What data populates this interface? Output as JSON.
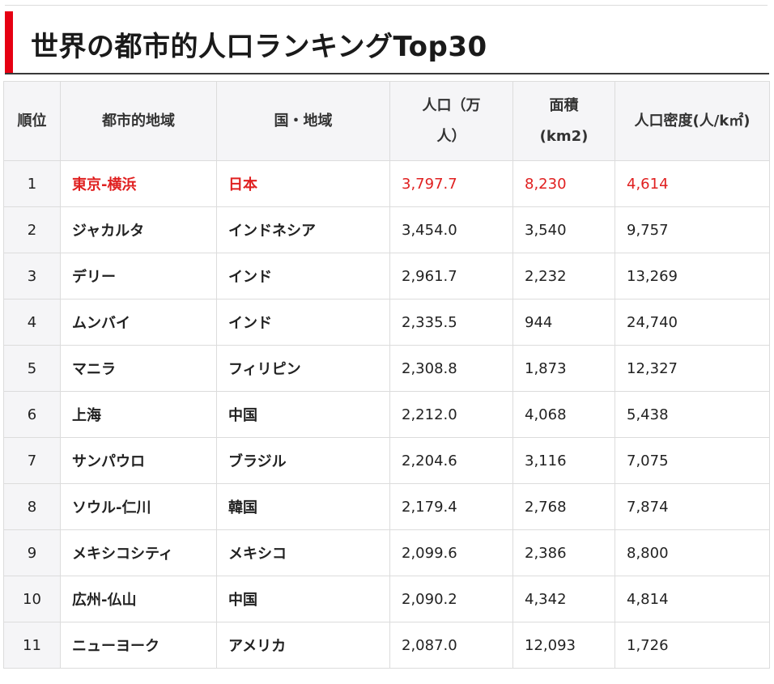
{
  "title": "世界の都市的人口ランキングTop30",
  "accent_color": "#e60012",
  "highlight_color": "#e02020",
  "table": {
    "headers": {
      "rank": "順位",
      "city": "都市的地域",
      "country": "国・地域",
      "population": "人口（万人）",
      "area": "面積(km2)",
      "density": "人口密度(人/k㎡)"
    },
    "rows": [
      {
        "rank": "1",
        "city": "東京-横浜",
        "country": "日本",
        "population": "3,797.7",
        "area": "8,230",
        "density": "4,614",
        "highlight": true
      },
      {
        "rank": "2",
        "city": "ジャカルタ",
        "country": "インドネシア",
        "population": "3,454.0",
        "area": "3,540",
        "density": "9,757"
      },
      {
        "rank": "3",
        "city": "デリー",
        "country": "インド",
        "population": "2,961.7",
        "area": "2,232",
        "density": "13,269"
      },
      {
        "rank": "4",
        "city": "ムンバイ",
        "country": "インド",
        "population": "2,335.5",
        "area": "944",
        "density": "24,740"
      },
      {
        "rank": "5",
        "city": "マニラ",
        "country": "フィリピン",
        "population": "2,308.8",
        "area": "1,873",
        "density": "12,327"
      },
      {
        "rank": "6",
        "city": "上海",
        "country": "中国",
        "population": "2,212.0",
        "area": "4,068",
        "density": "5,438"
      },
      {
        "rank": "7",
        "city": "サンパウロ",
        "country": "ブラジル",
        "population": "2,204.6",
        "area": "3,116",
        "density": "7,075"
      },
      {
        "rank": "8",
        "city": "ソウル-仁川",
        "country": "韓国",
        "population": "2,179.4",
        "area": "2,768",
        "density": "7,874"
      },
      {
        "rank": "9",
        "city": "メキシコシティ",
        "country": "メキシコ",
        "population": "2,099.6",
        "area": "2,386",
        "density": "8,800"
      },
      {
        "rank": "10",
        "city": "広州-仏山",
        "country": "中国",
        "population": "2,090.2",
        "area": "4,342",
        "density": "4,814"
      },
      {
        "rank": "11",
        "city": "ニューヨーク",
        "country": "アメリカ",
        "population": "2,087.0",
        "area": "12,093",
        "density": "1,726"
      }
    ]
  }
}
